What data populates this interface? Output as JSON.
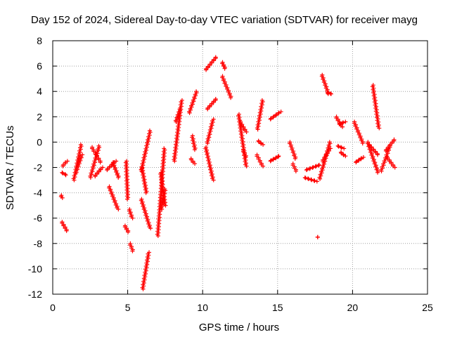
{
  "chart_data": {
    "type": "scatter",
    "title": "Day 152 of 2024, Sidereal Day-to-day VTEC variation (SDTVAR) for receiver mayg",
    "xlabel": "GPS time / hours",
    "ylabel": "SDTVAR / TECUs",
    "xlim": [
      0,
      25
    ],
    "ylim": [
      -12,
      8
    ],
    "xticks": [
      "0",
      "5",
      "10",
      "15",
      "20",
      "25"
    ],
    "yticks": [
      "-12",
      "-10",
      "-8",
      "-6",
      "-4",
      "-2",
      "0",
      "2",
      "4",
      "6",
      "8"
    ],
    "grid": true,
    "marker": "+",
    "series_color": "#ff0000",
    "segments": [
      {
        "name": "s01",
        "x0": 0.55,
        "x1": 0.62,
        "y0": -4.2,
        "y1": -4.4
      },
      {
        "name": "s02",
        "x0": 0.6,
        "x1": 0.95,
        "y0": -6.3,
        "y1": -7.0
      },
      {
        "name": "s03",
        "x0": 0.6,
        "x1": 0.9,
        "y0": -2.4,
        "y1": -2.6
      },
      {
        "name": "s04",
        "x0": 0.65,
        "x1": 0.95,
        "y0": -1.9,
        "y1": -1.5
      },
      {
        "name": "s05",
        "x0": 1.4,
        "x1": 1.9,
        "y0": -3.0,
        "y1": -0.2
      },
      {
        "name": "s06",
        "x0": 1.55,
        "x1": 1.95,
        "y0": -2.4,
        "y1": -1.0
      },
      {
        "name": "s07",
        "x0": 2.5,
        "x1": 3.1,
        "y0": -2.8,
        "y1": -0.3
      },
      {
        "name": "s08",
        "x0": 2.6,
        "x1": 3.2,
        "y0": -0.4,
        "y1": -1.6
      },
      {
        "name": "s09",
        "x0": 2.8,
        "x1": 3.3,
        "y0": -2.7,
        "y1": -2.0
      },
      {
        "name": "s10",
        "x0": 3.6,
        "x1": 4.2,
        "y0": -2.2,
        "y1": -1.5
      },
      {
        "name": "s11",
        "x0": 3.75,
        "x1": 4.35,
        "y0": -3.5,
        "y1": -5.3
      },
      {
        "name": "s12",
        "x0": 4.0,
        "x1": 4.4,
        "y0": -1.6,
        "y1": -2.8
      },
      {
        "name": "s13",
        "x0": 4.9,
        "x1": 5.0,
        "y0": -1.5,
        "y1": -4.5
      },
      {
        "name": "s14",
        "x0": 4.8,
        "x1": 5.05,
        "y0": -6.6,
        "y1": -7.1
      },
      {
        "name": "s15",
        "x0": 5.1,
        "x1": 5.3,
        "y0": -5.3,
        "y1": -6.0
      },
      {
        "name": "s16",
        "x0": 5.15,
        "x1": 5.35,
        "y0": -8.0,
        "y1": -8.6
      },
      {
        "name": "s17",
        "x0": 5.9,
        "x1": 6.5,
        "y0": -2.3,
        "y1": 0.9
      },
      {
        "name": "s18",
        "x0": 5.9,
        "x1": 6.5,
        "y0": -4.5,
        "y1": -6.8
      },
      {
        "name": "s19",
        "x0": 6.0,
        "x1": 6.4,
        "y0": -11.6,
        "y1": -8.7
      },
      {
        "name": "s20",
        "x0": 5.95,
        "x1": 6.25,
        "y0": -2.0,
        "y1": -4.0
      },
      {
        "name": "s21",
        "x0": 7.0,
        "x1": 7.45,
        "y0": -7.4,
        "y1": -0.5
      },
      {
        "name": "s22",
        "x0": 7.2,
        "x1": 7.5,
        "y0": -2.4,
        "y1": -5.0
      },
      {
        "name": "s23",
        "x0": 7.25,
        "x1": 7.5,
        "y0": -5.3,
        "y1": -3.7
      },
      {
        "name": "s24",
        "x0": 8.1,
        "x1": 8.6,
        "y0": -1.5,
        "y1": 3.3
      },
      {
        "name": "s25",
        "x0": 8.2,
        "x1": 8.5,
        "y0": 1.6,
        "y1": 2.6
      },
      {
        "name": "s26",
        "x0": 9.1,
        "x1": 9.6,
        "y0": 2.3,
        "y1": 4.0
      },
      {
        "name": "s27",
        "x0": 9.2,
        "x1": 9.45,
        "y0": -1.3,
        "y1": -1.7
      },
      {
        "name": "s28",
        "x0": 9.3,
        "x1": 9.5,
        "y0": 0.5,
        "y1": -0.6
      },
      {
        "name": "s29",
        "x0": 10.2,
        "x1": 10.7,
        "y0": -0.4,
        "y1": -3.0
      },
      {
        "name": "s30",
        "x0": 10.3,
        "x1": 10.7,
        "y0": -0.1,
        "y1": 1.8
      },
      {
        "name": "s31",
        "x0": 10.3,
        "x1": 10.9,
        "y0": 2.6,
        "y1": 3.4
      },
      {
        "name": "s32",
        "x0": 10.2,
        "x1": 10.9,
        "y0": 5.7,
        "y1": 6.7
      },
      {
        "name": "s33",
        "x0": 11.3,
        "x1": 11.5,
        "y0": 6.3,
        "y1": 5.8
      },
      {
        "name": "s34",
        "x0": 11.3,
        "x1": 11.9,
        "y0": 5.2,
        "y1": 3.5
      },
      {
        "name": "s35",
        "x0": 12.4,
        "x1": 12.9,
        "y0": 2.2,
        "y1": -1.9
      },
      {
        "name": "s36",
        "x0": 12.5,
        "x1": 12.9,
        "y0": 1.6,
        "y1": 0.8
      },
      {
        "name": "s37",
        "x0": 12.7,
        "x1": 12.9,
        "y0": -0.6,
        "y1": -1.2
      },
      {
        "name": "s38",
        "x0": 13.6,
        "x1": 14.0,
        "y0": -1.0,
        "y1": -1.9
      },
      {
        "name": "s39",
        "x0": 13.7,
        "x1": 14.0,
        "y0": 0.1,
        "y1": -0.2
      },
      {
        "name": "s40",
        "x0": 13.65,
        "x1": 14.0,
        "y0": 1.0,
        "y1": 3.3
      },
      {
        "name": "s41",
        "x0": 14.5,
        "x1": 15.2,
        "y0": 1.8,
        "y1": 2.4
      },
      {
        "name": "s42",
        "x0": 14.5,
        "x1": 15.1,
        "y0": -1.5,
        "y1": -1.1
      },
      {
        "name": "s43",
        "x0": 15.8,
        "x1": 16.2,
        "y0": 0.0,
        "y1": -1.3
      },
      {
        "name": "s44",
        "x0": 16.0,
        "x1": 16.25,
        "y0": -1.7,
        "y1": -2.3
      },
      {
        "name": "s45",
        "x0": 16.8,
        "x1": 17.6,
        "y0": -2.8,
        "y1": -3.1
      },
      {
        "name": "s46",
        "x0": 16.9,
        "x1": 17.8,
        "y0": -2.2,
        "y1": -1.8
      },
      {
        "name": "s47",
        "x0": 17.65,
        "x1": 17.7,
        "y0": -7.5,
        "y1": -7.5
      },
      {
        "name": "s48",
        "x0": 17.8,
        "x1": 18.5,
        "y0": -2.9,
        "y1": 0.0
      },
      {
        "name": "s49",
        "x0": 18.0,
        "x1": 18.5,
        "y0": -1.5,
        "y1": -0.5
      },
      {
        "name": "s50",
        "x0": 17.95,
        "x1": 18.4,
        "y0": 5.3,
        "y1": 3.8
      },
      {
        "name": "s51",
        "x0": 18.3,
        "x1": 18.6,
        "y0": 3.9,
        "y1": 3.8
      },
      {
        "name": "s52",
        "x0": 18.9,
        "x1": 19.3,
        "y0": 2.0,
        "y1": 1.2
      },
      {
        "name": "s53",
        "x0": 19.1,
        "x1": 19.5,
        "y0": 1.4,
        "y1": 1.6
      },
      {
        "name": "s54",
        "x0": 19.0,
        "x1": 19.4,
        "y0": -0.3,
        "y1": -0.5
      },
      {
        "name": "s55",
        "x0": 19.2,
        "x1": 19.5,
        "y0": -0.8,
        "y1": -1.1
      },
      {
        "name": "s56",
        "x0": 20.1,
        "x1": 20.7,
        "y0": 1.6,
        "y1": -0.1
      },
      {
        "name": "s57",
        "x0": 20.2,
        "x1": 20.7,
        "y0": -1.6,
        "y1": -1.2
      },
      {
        "name": "s58",
        "x0": 21.0,
        "x1": 21.7,
        "y0": 0.0,
        "y1": -2.4
      },
      {
        "name": "s59",
        "x0": 21.1,
        "x1": 21.7,
        "y0": -0.2,
        "y1": -1.0
      },
      {
        "name": "s60",
        "x0": 21.35,
        "x1": 21.75,
        "y0": 4.5,
        "y1": 1.1
      },
      {
        "name": "s61",
        "x0": 21.9,
        "x1": 22.5,
        "y0": -2.3,
        "y1": -0.3
      },
      {
        "name": "s62",
        "x0": 22.2,
        "x1": 22.8,
        "y0": -0.7,
        "y1": 0.2
      },
      {
        "name": "s63",
        "x0": 22.3,
        "x1": 22.8,
        "y0": -1.2,
        "y1": -2.0
      }
    ]
  }
}
